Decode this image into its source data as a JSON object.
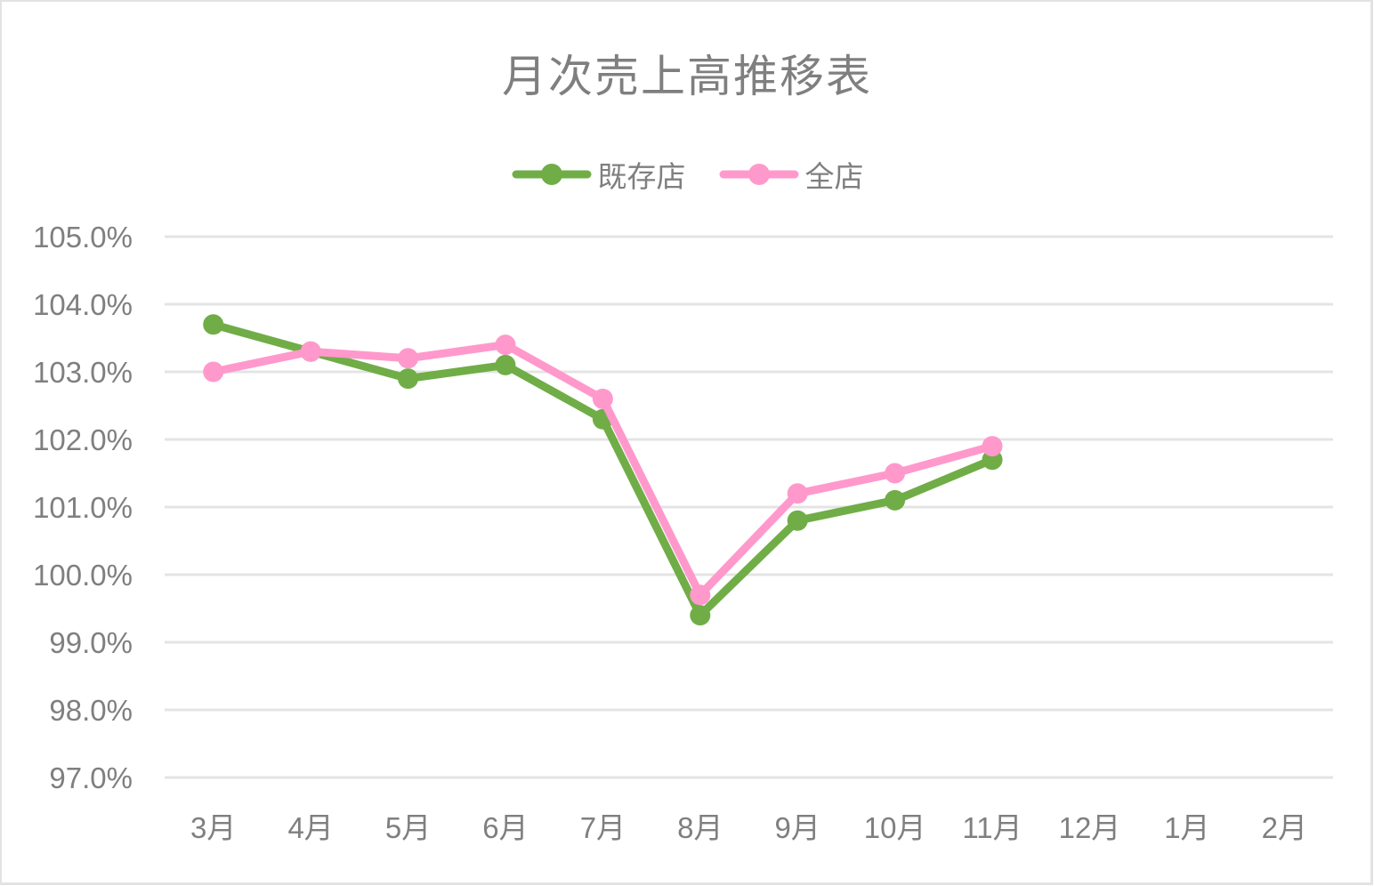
{
  "chart_data": {
    "type": "line",
    "title": "月次売上高推移表",
    "xlabel": "",
    "ylabel": "",
    "categories": [
      "3月",
      "4月",
      "5月",
      "6月",
      "7月",
      "8月",
      "9月",
      "10月",
      "11月",
      "12月",
      "1月",
      "2月"
    ],
    "series": [
      {
        "name": "既存店",
        "color": "#70ad47",
        "values": [
          103.7,
          103.3,
          102.9,
          103.1,
          102.3,
          99.4,
          100.8,
          101.1,
          101.7,
          null,
          null,
          null
        ]
      },
      {
        "name": "全店",
        "color": "#ff99cc",
        "values": [
          103.0,
          103.3,
          103.2,
          103.4,
          102.6,
          99.7,
          101.2,
          101.5,
          101.9,
          null,
          null,
          null
        ]
      }
    ],
    "ylim": [
      97.0,
      105.0
    ],
    "yticks": [
      "105.0%",
      "104.0%",
      "103.0%",
      "102.0%",
      "101.0%",
      "100.0%",
      "99.0%",
      "98.0%",
      "97.0%"
    ],
    "ytick_values": [
      105,
      104,
      103,
      102,
      101,
      100,
      99,
      98,
      97
    ],
    "grid": true,
    "legend_position": "top"
  },
  "colors": {
    "text": "#7f7f7f",
    "grid": "#e4e4e4",
    "border": "#e3e3e3"
  }
}
